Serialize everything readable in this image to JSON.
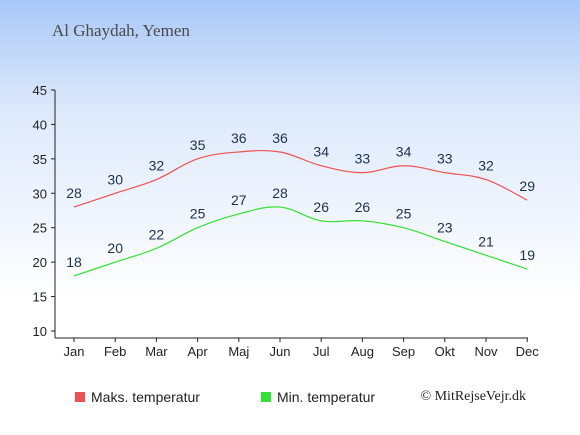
{
  "title": "Al Ghaydah, Yemen",
  "copyright": "© MitRejseVejr.dk",
  "legend": {
    "max_label": "Maks. temperatur",
    "min_label": "Min. temperatur"
  },
  "colors": {
    "max": "#f05050",
    "min": "#33e233",
    "axis": "#222222",
    "label": "#1c3050"
  },
  "chart_data": {
    "type": "line",
    "categories": [
      "Jan",
      "Feb",
      "Mar",
      "Apr",
      "Maj",
      "Jun",
      "Jul",
      "Aug",
      "Sep",
      "Okt",
      "Nov",
      "Dec"
    ],
    "series": [
      {
        "name": "Maks. temperatur",
        "values": [
          28,
          30,
          32,
          35,
          36,
          36,
          34,
          33,
          34,
          33,
          32,
          29
        ]
      },
      {
        "name": "Min. temperatur",
        "values": [
          18,
          20,
          22,
          25,
          27,
          28,
          26,
          26,
          25,
          23,
          21,
          19
        ]
      }
    ],
    "yticks": [
      10,
      15,
      20,
      25,
      30,
      35,
      40,
      45
    ],
    "ylim": [
      10,
      45
    ],
    "grid": false,
    "legend_position": "bottom"
  }
}
